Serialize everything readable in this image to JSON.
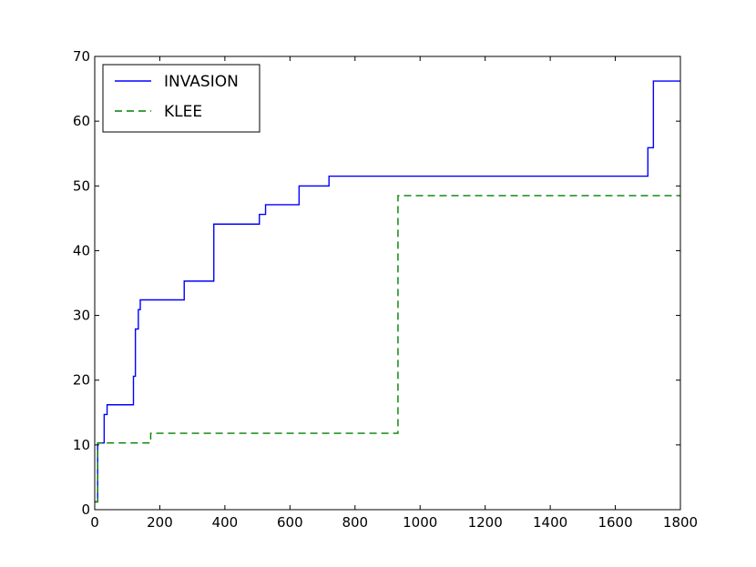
{
  "chart_data": {
    "type": "line",
    "title": "",
    "xlabel": "",
    "ylabel": "",
    "xlim": [
      0,
      1800
    ],
    "ylim": [
      0,
      70
    ],
    "xticks": [
      0,
      200,
      400,
      600,
      800,
      1000,
      1200,
      1400,
      1600,
      1800
    ],
    "yticks": [
      0,
      10,
      20,
      30,
      40,
      50,
      60,
      70
    ],
    "x_tick_labels": [
      "0",
      "200",
      "400",
      "600",
      "800",
      "1000",
      "1200",
      "1400",
      "1600",
      "1800"
    ],
    "y_tick_labels": [
      "0",
      "10",
      "20",
      "30",
      "40",
      "50",
      "60",
      "70"
    ],
    "grid": false,
    "legend_position": "top-left",
    "step": "post",
    "series": [
      {
        "name": "INVASION",
        "color": "#0000ff",
        "linestyle": "solid",
        "points": [
          [
            0,
            1.2
          ],
          [
            9,
            1.2
          ],
          [
            9,
            10.3
          ],
          [
            29,
            10.3
          ],
          [
            29,
            14.7
          ],
          [
            38,
            14.7
          ],
          [
            38,
            16.2
          ],
          [
            119,
            16.2
          ],
          [
            119,
            20.6
          ],
          [
            125,
            20.6
          ],
          [
            125,
            27.9
          ],
          [
            134,
            27.9
          ],
          [
            134,
            30.9
          ],
          [
            140,
            30.9
          ],
          [
            140,
            32.4
          ],
          [
            275,
            32.4
          ],
          [
            275,
            35.3
          ],
          [
            366,
            35.3
          ],
          [
            366,
            44.1
          ],
          [
            506,
            44.1
          ],
          [
            506,
            45.6
          ],
          [
            525,
            45.6
          ],
          [
            525,
            47.1
          ],
          [
            628,
            47.1
          ],
          [
            628,
            50.0
          ],
          [
            720,
            50.0
          ],
          [
            720,
            51.5
          ],
          [
            1700,
            51.5
          ],
          [
            1700,
            55.9
          ],
          [
            1717,
            55.9
          ],
          [
            1717,
            66.2
          ],
          [
            1800,
            66.2
          ]
        ]
      },
      {
        "name": "KLEE",
        "color": "#008000",
        "linestyle": "dashed",
        "points": [
          [
            0,
            1.2
          ],
          [
            9,
            1.2
          ],
          [
            9,
            10.3
          ],
          [
            172,
            10.3
          ],
          [
            172,
            11.8
          ],
          [
            932,
            11.8
          ],
          [
            932,
            48.5
          ],
          [
            1800,
            48.5
          ]
        ]
      }
    ]
  }
}
